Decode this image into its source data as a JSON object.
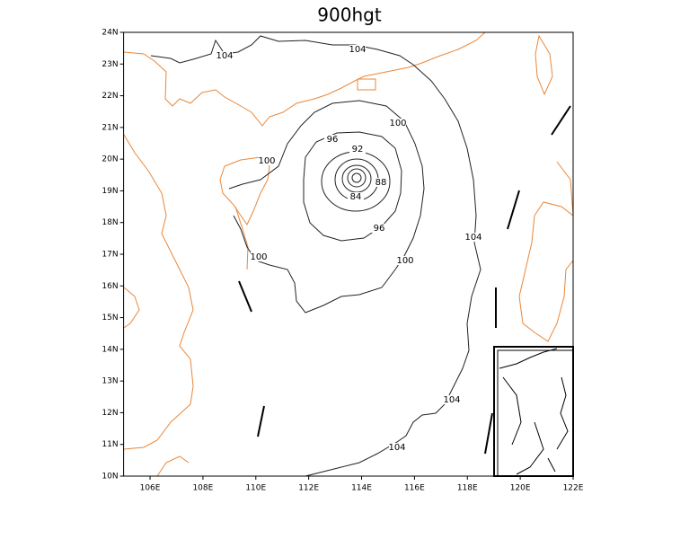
{
  "map": {
    "title": "900hgt",
    "xlim": [
      105,
      122
    ],
    "ylim": [
      10,
      24
    ],
    "xticks": [
      {
        "value": 106,
        "label": "106E"
      },
      {
        "value": 108,
        "label": "108E"
      },
      {
        "value": 110,
        "label": "110E"
      },
      {
        "value": 112,
        "label": "112E"
      },
      {
        "value": 114,
        "label": "114E"
      },
      {
        "value": 116,
        "label": "116E"
      },
      {
        "value": 118,
        "label": "118E"
      },
      {
        "value": 120,
        "label": "120E"
      },
      {
        "value": 122,
        "label": "122E"
      }
    ],
    "yticks": [
      {
        "value": 10,
        "label": "10N"
      },
      {
        "value": 11,
        "label": "11N"
      },
      {
        "value": 12,
        "label": "12N"
      },
      {
        "value": 13,
        "label": "13N"
      },
      {
        "value": 14,
        "label": "14N"
      },
      {
        "value": 15,
        "label": "15N"
      },
      {
        "value": 16,
        "label": "16N"
      },
      {
        "value": 17,
        "label": "17N"
      },
      {
        "value": 18,
        "label": "18N"
      },
      {
        "value": 19,
        "label": "19N"
      },
      {
        "value": 20,
        "label": "20N"
      },
      {
        "value": 21,
        "label": "21N"
      },
      {
        "value": 22,
        "label": "22N"
      },
      {
        "value": 23,
        "label": "23N"
      },
      {
        "value": 24,
        "label": "24N"
      }
    ],
    "contour_labels": [
      "104",
      "104",
      "100",
      "96",
      "92",
      "100",
      "88",
      "84",
      "96",
      "104",
      "100",
      "100",
      "104",
      "104"
    ]
  }
}
